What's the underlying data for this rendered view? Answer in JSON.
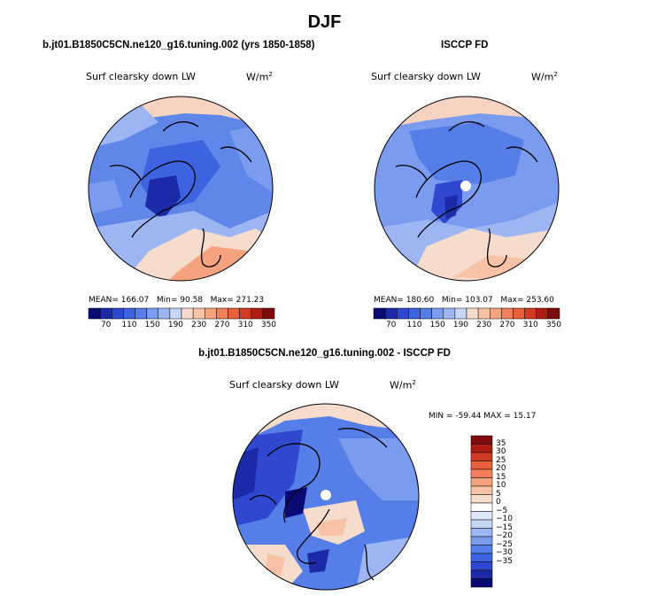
{
  "page": {
    "title": "DJF",
    "panel_a_title": "b.jt01.B1850C5CN.ne120_g16.tuning.002 (yrs 1850-1858)",
    "panel_b_title": "ISCCP FD",
    "diff_title": "b.jt01.B1850C5CN.ne120_g16.tuning.002 - ISCCP FD"
  },
  "panel_a": {
    "variable": "Surf clearsky down LW",
    "units_base": "W/m",
    "units_exp": "2",
    "mean_label": "MEAN=",
    "mean": "166.07",
    "min_label": "Min=",
    "min": "90.58",
    "max_label": "Max=",
    "max": "271.23"
  },
  "panel_b": {
    "variable": "Surf clearsky down LW",
    "units_base": "W/m",
    "units_exp": "2",
    "mean_label": "MEAN=",
    "mean": "180.60",
    "min_label": "Min=",
    "min": "103.07",
    "max_label": "Max=",
    "max": "253.60"
  },
  "diff": {
    "variable": "Surf clearsky down LW",
    "units_base": "W/m",
    "units_exp": "2",
    "minmax_text": "MIN = -59.44 MAX =  15.17"
  },
  "colorbar_abs": {
    "colors": [
      "#0a0a74",
      "#1c2aa8",
      "#2f48cf",
      "#3e63e0",
      "#557ee8",
      "#7a9bee",
      "#9db6f3",
      "#c5d6f7",
      "#f6dccd",
      "#f8c2a6",
      "#f5a27f",
      "#f0805d",
      "#e8603c",
      "#cf3b24",
      "#b01d16",
      "#7e0c0c"
    ],
    "tick_labels": [
      "70",
      "110",
      "150",
      "190",
      "230",
      "270",
      "310",
      "350"
    ]
  },
  "colorbar_diff": {
    "colors": [
      "#7e0c0c",
      "#b01d16",
      "#cf3b24",
      "#e8603c",
      "#f0805d",
      "#f5a27f",
      "#f8c2a6",
      "#f6dccd",
      "#ffffff",
      "#dfe8fb",
      "#c5d6f7",
      "#9db6f3",
      "#7a9bee",
      "#557ee8",
      "#3e63e0",
      "#2f48cf",
      "#1c2aa8",
      "#0a0a74"
    ],
    "tick_labels": [
      "35",
      "30",
      "25",
      "20",
      "15",
      "10",
      "5",
      "0",
      "−5",
      "−10",
      "−15",
      "−20",
      "−25",
      "−30",
      "−35"
    ]
  }
}
